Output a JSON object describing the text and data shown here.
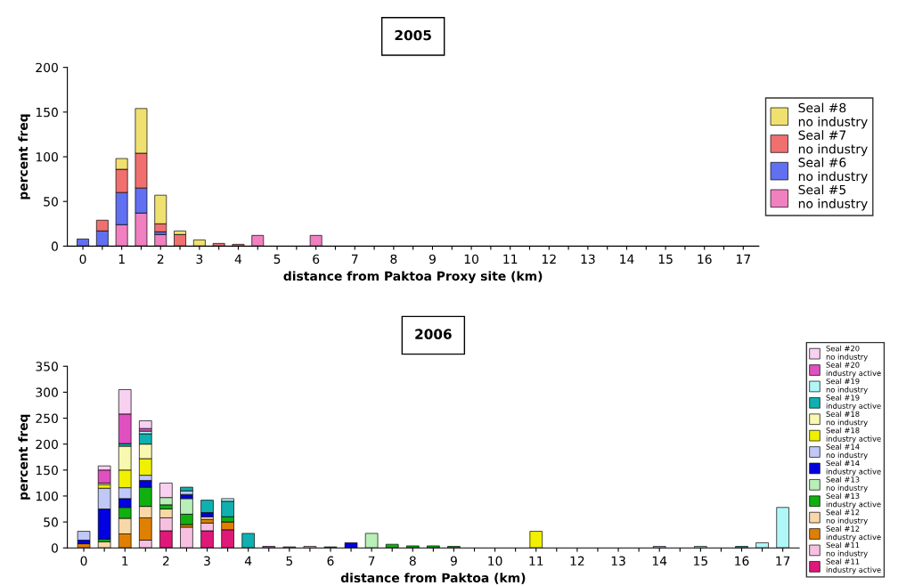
{
  "chart_data": [
    {
      "type": "bar",
      "stacked": true,
      "title": "2005",
      "xlabel": "distance from Paktoa Proxy site (km)",
      "ylabel": "percent freq",
      "ylim": [
        0,
        200
      ],
      "yticks": [
        0,
        50,
        100,
        150,
        200
      ],
      "grid": false,
      "legend": "right",
      "categories": [
        "0",
        null,
        "1",
        null,
        "2",
        null,
        "3",
        null,
        "4",
        null,
        "5",
        null,
        "6",
        null,
        "7",
        null,
        "8",
        null,
        "9",
        null,
        "10",
        null,
        "11",
        null,
        "12",
        null,
        "13",
        null,
        "14",
        null,
        "15",
        null,
        "16",
        null,
        "17"
      ],
      "series": [
        {
          "name": "Seal #5\nno industry",
          "color": "#f080c0",
          "values": [
            null,
            null,
            24,
            37,
            13,
            null,
            null,
            null,
            null,
            12,
            null,
            null,
            12,
            null,
            null,
            null,
            null,
            null,
            null,
            null,
            null,
            null,
            null,
            null,
            null,
            null,
            null,
            null,
            null,
            null,
            null,
            null,
            null,
            null,
            null
          ]
        },
        {
          "name": "Seal #6\nno industry",
          "color": "#6070f0",
          "values": [
            8,
            17,
            36,
            28,
            3,
            null,
            null,
            null,
            null,
            null,
            null,
            null,
            null,
            null,
            null,
            null,
            null,
            null,
            null,
            null,
            null,
            null,
            null,
            null,
            null,
            null,
            null,
            null,
            null,
            null,
            null,
            null,
            null,
            null,
            null
          ]
        },
        {
          "name": "Seal #7\nno industry",
          "color": "#f07070",
          "values": [
            null,
            12,
            26,
            39,
            9,
            13,
            null,
            3,
            2,
            null,
            null,
            null,
            null,
            null,
            null,
            null,
            null,
            null,
            null,
            null,
            null,
            null,
            null,
            null,
            null,
            null,
            null,
            null,
            null,
            null,
            null,
            null,
            null,
            null,
            null
          ]
        },
        {
          "name": "Seal #8\nno industry",
          "color": "#f0e070",
          "values": [
            null,
            null,
            12,
            50,
            32,
            4,
            7,
            null,
            null,
            null,
            null,
            null,
            null,
            null,
            null,
            null,
            null,
            null,
            null,
            null,
            null,
            null,
            null,
            null,
            null,
            null,
            null,
            null,
            null,
            null,
            null,
            null,
            null,
            null,
            null
          ]
        }
      ]
    },
    {
      "type": "bar",
      "stacked": true,
      "title": "2006",
      "xlabel": "distance from Paktoa (km)",
      "ylabel": "percent freq",
      "ylim": [
        0,
        350
      ],
      "yticks": [
        0,
        50,
        100,
        150,
        200,
        250,
        300,
        350
      ],
      "grid": false,
      "legend": "right",
      "categories": [
        "0",
        null,
        "1",
        null,
        "2",
        null,
        "3",
        null,
        "4",
        null,
        "5",
        null,
        "6",
        null,
        "7",
        null,
        "8",
        null,
        "9",
        null,
        "10",
        null,
        "11",
        null,
        "12",
        null,
        "13",
        null,
        "14",
        null,
        "15",
        null,
        "16",
        null,
        "17"
      ],
      "series": [
        {
          "name": "Seal #11\nindustry active",
          "color": "#e0187a",
          "values": [
            null,
            null,
            null,
            null,
            33,
            null,
            33,
            35,
            null,
            null,
            null,
            null,
            null,
            null,
            null,
            null,
            null,
            null,
            null,
            null,
            null,
            null,
            null,
            null,
            null,
            null,
            null,
            null,
            null,
            null,
            null,
            null,
            null,
            null,
            null
          ]
        },
        {
          "name": "Seal #11\nno industry",
          "color": "#f8c0e0",
          "values": [
            null,
            null,
            null,
            15,
            25,
            40,
            15,
            null,
            null,
            null,
            null,
            null,
            null,
            null,
            null,
            null,
            null,
            null,
            null,
            null,
            null,
            null,
            null,
            null,
            null,
            null,
            null,
            null,
            null,
            null,
            null,
            null,
            null,
            null,
            null
          ]
        },
        {
          "name": "Seal #12\nindustry active",
          "color": "#e08000",
          "values": [
            8,
            null,
            27,
            43,
            null,
            5,
            7,
            15,
            null,
            null,
            null,
            null,
            null,
            null,
            null,
            null,
            null,
            null,
            null,
            null,
            null,
            null,
            null,
            null,
            null,
            null,
            null,
            null,
            null,
            null,
            null,
            null,
            null,
            null,
            null
          ]
        },
        {
          "name": "Seal #12\nno industry",
          "color": "#f8d8a8",
          "values": [
            null,
            12,
            30,
            22,
            17,
            null,
            5,
            null,
            null,
            null,
            null,
            null,
            null,
            null,
            null,
            null,
            null,
            null,
            null,
            null,
            null,
            null,
            null,
            null,
            null,
            null,
            null,
            null,
            null,
            null,
            null,
            null,
            null,
            null,
            null
          ]
        },
        {
          "name": "Seal #13\nindustry active",
          "color": "#10b010",
          "values": [
            null,
            5,
            21,
            37,
            8,
            20,
            null,
            10,
            null,
            null,
            null,
            null,
            2,
            null,
            null,
            7,
            4,
            4,
            3,
            null,
            null,
            null,
            null,
            null,
            null,
            null,
            null,
            null,
            null,
            null,
            null,
            null,
            null,
            null,
            null
          ]
        },
        {
          "name": "Seal #13\nno industry",
          "color": "#b8f0b8",
          "values": [
            null,
            null,
            null,
            null,
            14,
            30,
            null,
            null,
            null,
            null,
            null,
            null,
            null,
            null,
            28,
            null,
            null,
            null,
            null,
            null,
            null,
            null,
            null,
            null,
            null,
            null,
            null,
            null,
            null,
            null,
            null,
            null,
            null,
            null,
            null
          ]
        },
        {
          "name": "Seal #14\nindustry active",
          "color": "#0000e0",
          "values": [
            7,
            58,
            17,
            13,
            null,
            8,
            8,
            null,
            null,
            null,
            null,
            null,
            null,
            10,
            null,
            null,
            null,
            null,
            null,
            null,
            null,
            null,
            null,
            null,
            null,
            null,
            null,
            null,
            null,
            null,
            null,
            null,
            null,
            null,
            null
          ]
        },
        {
          "name": "Seal #14\nno industry",
          "color": "#c0c8f8",
          "values": [
            17,
            40,
            21,
            10,
            null,
            7,
            null,
            null,
            null,
            null,
            null,
            null,
            null,
            null,
            null,
            null,
            null,
            null,
            null,
            null,
            null,
            null,
            null,
            null,
            null,
            null,
            null,
            null,
            3,
            null,
            null,
            null,
            null,
            null,
            null
          ]
        },
        {
          "name": "Seal #18\nindustry active",
          "color": "#f0f000",
          "values": [
            null,
            7,
            34,
            32,
            null,
            null,
            null,
            null,
            null,
            null,
            null,
            null,
            null,
            null,
            null,
            null,
            null,
            null,
            null,
            null,
            null,
            null,
            32,
            null,
            null,
            null,
            null,
            null,
            null,
            null,
            null,
            null,
            null,
            null,
            null
          ]
        },
        {
          "name": "Seal #18\nno industry",
          "color": "#f8f8b0",
          "values": [
            null,
            3,
            46,
            28,
            null,
            null,
            null,
            null,
            null,
            null,
            null,
            null,
            null,
            null,
            null,
            null,
            null,
            null,
            null,
            null,
            null,
            null,
            null,
            null,
            null,
            null,
            null,
            null,
            null,
            null,
            null,
            null,
            null,
            null,
            null
          ]
        },
        {
          "name": "Seal #19\nindustry active",
          "color": "#10b0b0",
          "values": [
            null,
            null,
            5,
            20,
            null,
            7,
            24,
            30,
            28,
            null,
            null,
            null,
            null,
            null,
            null,
            null,
            null,
            null,
            null,
            null,
            null,
            null,
            null,
            null,
            null,
            null,
            null,
            null,
            null,
            null,
            null,
            null,
            3,
            null,
            null
          ]
        },
        {
          "name": "Seal #19\nno industry",
          "color": "#b0f8f8",
          "values": [
            null,
            null,
            null,
            5,
            null,
            null,
            null,
            5,
            null,
            null,
            null,
            null,
            null,
            null,
            null,
            null,
            null,
            null,
            null,
            null,
            null,
            null,
            null,
            null,
            null,
            null,
            null,
            null,
            null,
            null,
            3,
            null,
            null,
            10,
            78
          ]
        },
        {
          "name": "Seal #20\nindustry active",
          "color": "#e050c0",
          "values": [
            null,
            25,
            57,
            5,
            null,
            null,
            null,
            null,
            null,
            3,
            2,
            null,
            null,
            null,
            null,
            null,
            null,
            null,
            null,
            null,
            null,
            null,
            null,
            null,
            null,
            null,
            null,
            null,
            null,
            null,
            null,
            null,
            null,
            null,
            null
          ]
        },
        {
          "name": "Seal #20\nno industry",
          "color": "#f8d0f0",
          "values": [
            null,
            8,
            47,
            15,
            28,
            null,
            null,
            null,
            null,
            null,
            null,
            3,
            null,
            null,
            null,
            null,
            null,
            null,
            null,
            null,
            null,
            null,
            null,
            null,
            null,
            null,
            null,
            null,
            null,
            null,
            null,
            null,
            null,
            null,
            null
          ]
        }
      ]
    }
  ]
}
